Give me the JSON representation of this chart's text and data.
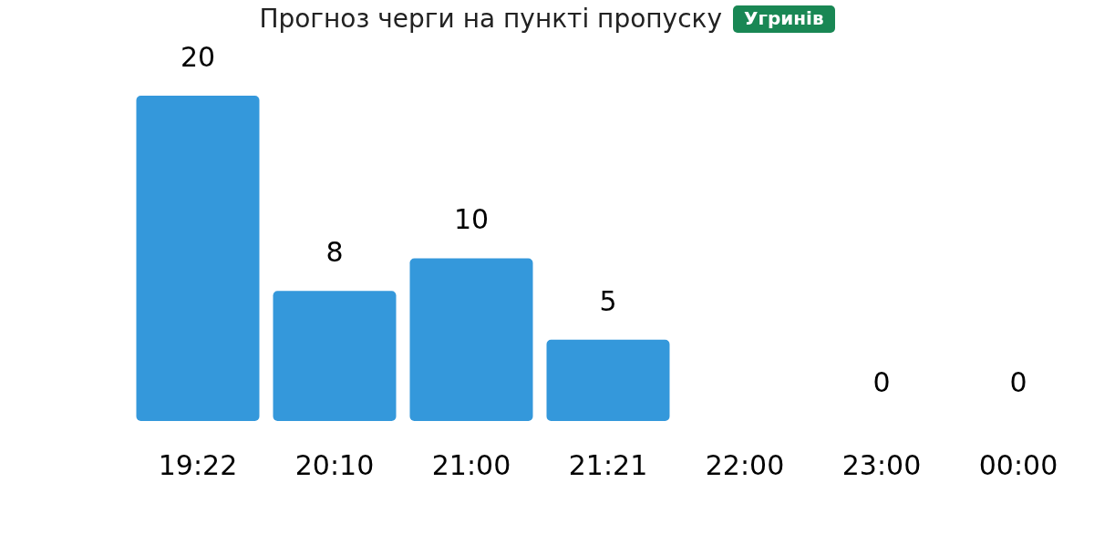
{
  "chart_data": {
    "type": "bar",
    "title": "Прогноз черги на пункті пропуску",
    "subtitle": "Угринів",
    "categories": [
      "19:22",
      "20:10",
      "21:00",
      "21:21",
      "22:00",
      "23:00",
      "00:00"
    ],
    "values": [
      20,
      8,
      10,
      5,
      null,
      0,
      0
    ],
    "color": "#3498db",
    "data_labels": true
  }
}
